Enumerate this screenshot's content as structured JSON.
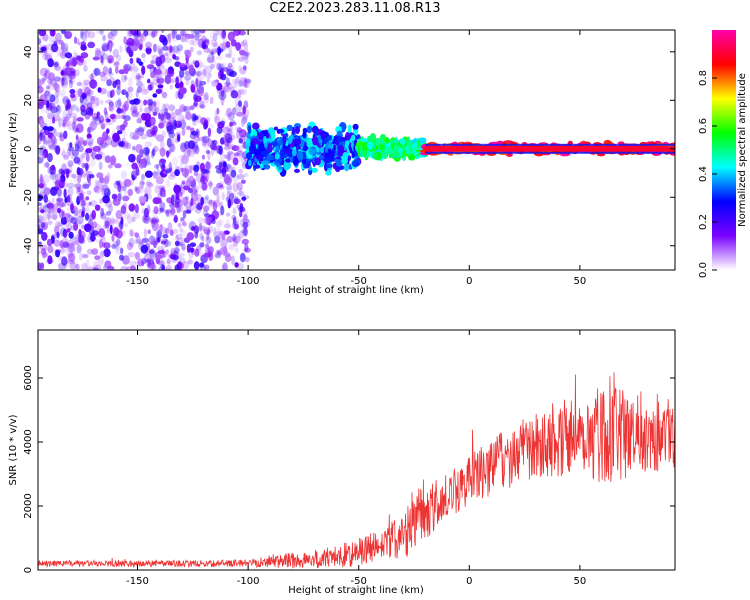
{
  "title": "C2E2.2023.283.11.08.R13",
  "chart_data": [
    {
      "type": "heatmap",
      "title": "",
      "xlabel": "Height of straight line (km)",
      "ylabel": "Frequency (Hz)",
      "xlim": [
        -195,
        93
      ],
      "ylim": [
        -50,
        49
      ],
      "xticks": [
        -150,
        -100,
        -50,
        0,
        50
      ],
      "yticks": [
        -40,
        -20,
        0,
        20,
        40
      ],
      "colorbar": {
        "label": "Normalized spectral amplitude",
        "range": [
          0,
          1
        ],
        "ticks": [
          0.0,
          0.2,
          0.4,
          0.6,
          0.8
        ],
        "tick_labels": [
          "0.0",
          "0.2",
          "0.4",
          "0.6",
          "0.8"
        ],
        "colormap": [
          "#ffffff",
          "#7a00ff",
          "#0000ff",
          "#00ffff",
          "#00ff00",
          "#ffff00",
          "#ff0000",
          "#ff00aa"
        ]
      },
      "regions": [
        {
          "x": [
            -195,
            -100
          ],
          "freq_band": [
            -50,
            49
          ],
          "amplitude": [
            0.05,
            0.25
          ],
          "description_level": "broadband noise"
        },
        {
          "x": [
            -100,
            -50
          ],
          "freq_band": [
            -12,
            12
          ],
          "amplitude": [
            0.2,
            0.45
          ]
        },
        {
          "x": [
            -50,
            -20
          ],
          "freq_band": [
            -5,
            5
          ],
          "amplitude": [
            0.4,
            0.6
          ]
        },
        {
          "x": [
            -20,
            93
          ],
          "freq_band": [
            -3,
            3
          ],
          "amplitude": [
            0.8,
            1.0
          ]
        }
      ]
    },
    {
      "type": "line",
      "title": "",
      "xlabel": "Height of straight line (km)",
      "ylabel": "SNR (10 * v/v)",
      "xlim": [
        -195,
        93
      ],
      "ylim": [
        0,
        7500
      ],
      "xticks": [
        -150,
        -100,
        -50,
        0,
        50
      ],
      "yticks": [
        0,
        2000,
        4000,
        6000
      ],
      "color": "#ee3333",
      "envelope": {
        "x": [
          -195,
          -150,
          -110,
          -100,
          -90,
          -80,
          -70,
          -60,
          -50,
          -40,
          -30,
          -25,
          -20,
          -10,
          0,
          10,
          20,
          30,
          40,
          50,
          60,
          70,
          80,
          93
        ],
        "mean": [
          200,
          200,
          200,
          230,
          260,
          300,
          330,
          420,
          550,
          750,
          1100,
          1500,
          1800,
          2300,
          2800,
          3200,
          3600,
          3900,
          4100,
          4200,
          4300,
          4200,
          4300,
          4400
        ],
        "amplitude": [
          100,
          100,
          100,
          130,
          200,
          250,
          300,
          350,
          450,
          550,
          700,
          1100,
          900,
          700,
          800,
          900,
          1000,
          1000,
          1200,
          1300,
          1600,
          1400,
          1300,
          1200
        ]
      }
    }
  ]
}
